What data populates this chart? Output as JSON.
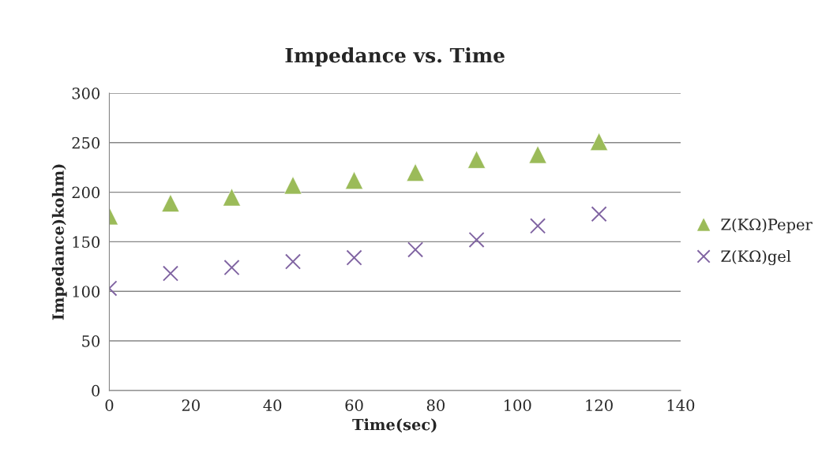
{
  "chart_data": {
    "type": "scatter",
    "title": "Impedance vs. Time",
    "xlabel": "Time(sec)",
    "ylabel": "Impedance)kohm)",
    "x": [
      0,
      15,
      30,
      45,
      60,
      75,
      90,
      105,
      120
    ],
    "series": [
      {
        "name": "Z(KΩ)Peper",
        "color": "#9bbb59",
        "marker": "triangle",
        "values": [
          176,
          189,
          195,
          207,
          212,
          220,
          233,
          238,
          251
        ]
      },
      {
        "name": "Z(KΩ)gel",
        "color": "#8064a2",
        "marker": "cross",
        "values": [
          103,
          118,
          124,
          130,
          134,
          142,
          152,
          166,
          178
        ]
      }
    ],
    "xlim": [
      0,
      140
    ],
    "xticks": [
      0,
      20,
      40,
      60,
      80,
      100,
      120,
      140
    ],
    "ylim": [
      0,
      300
    ],
    "yticks": [
      0,
      50,
      100,
      150,
      200,
      250,
      300
    ],
    "grid": "y",
    "legend": "right"
  }
}
